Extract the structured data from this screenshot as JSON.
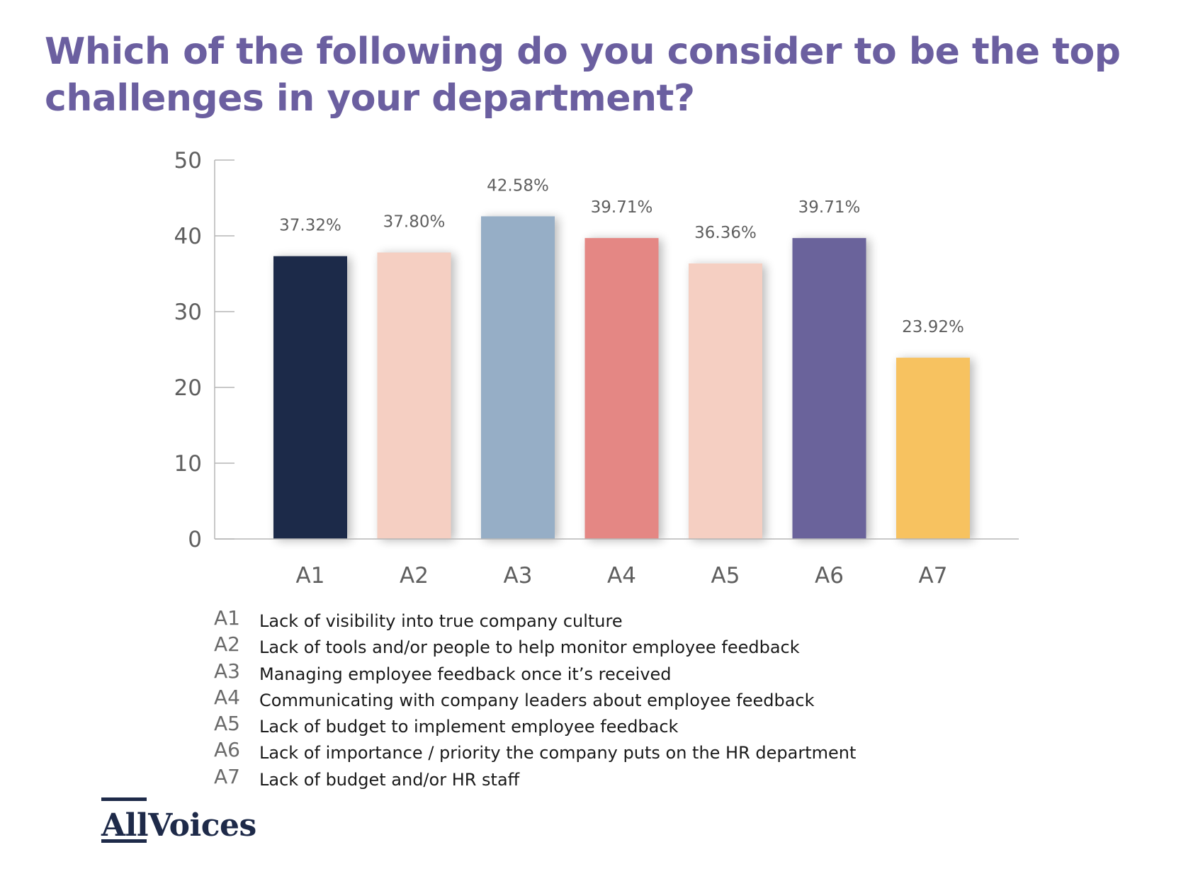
{
  "title": "Which of the following do you consider to be the top challenges in your department?",
  "chart_data": {
    "type": "bar",
    "categories": [
      "A1",
      "A2",
      "A3",
      "A4",
      "A5",
      "A6",
      "A7"
    ],
    "values": [
      37.32,
      37.8,
      42.58,
      39.71,
      36.36,
      39.71,
      23.92
    ],
    "data_labels": [
      "37.32%",
      "37.80%",
      "42.58%",
      "39.71%",
      "36.36%",
      "39.71%",
      "23.92%"
    ],
    "colors": [
      "#1e2a49",
      "#f5cfc2",
      "#96aec6",
      "#e48784",
      "#f5cfc2",
      "#6a639b",
      "#f7c260"
    ],
    "ylim": [
      0,
      50
    ],
    "yticks": [
      0,
      10,
      20,
      30,
      40,
      50
    ],
    "grid": false,
    "legend": "below"
  },
  "legend": [
    {
      "code": "A1",
      "text": "Lack of visibility into true company culture"
    },
    {
      "code": "A2",
      "text": "Lack of tools and/or people to help monitor employee feedback"
    },
    {
      "code": "A3",
      "text": "Managing employee feedback once it’s received"
    },
    {
      "code": "A4",
      "text": "Communicating with company leaders about employee feedback"
    },
    {
      "code": "A5",
      "text": "Lack of budget to implement employee feedback"
    },
    {
      "code": "A6",
      "text": "Lack of importance / priority the company puts on the HR department"
    },
    {
      "code": "A7",
      "text": "Lack of budget and/or HR staff"
    }
  ],
  "logo": {
    "text": "AllVoices"
  },
  "colors": {
    "title": "#6b5fa0",
    "axis": "#9a9a9a",
    "text": "#5f5f5f"
  }
}
